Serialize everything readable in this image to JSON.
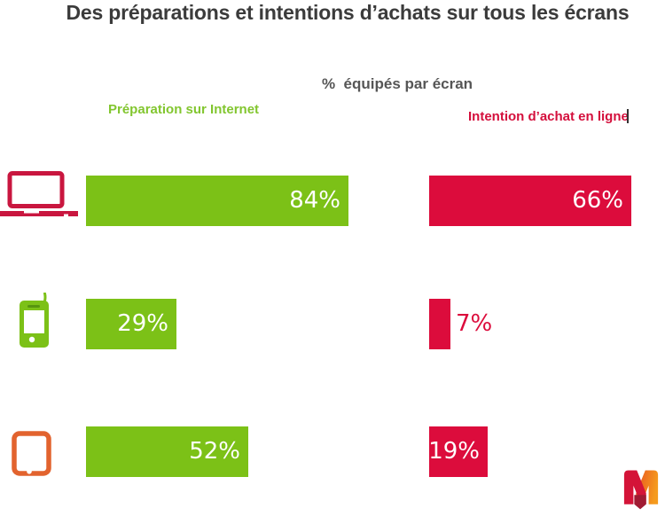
{
  "header": {
    "title": "Des préparations et intentions d’achats sur tous les écrans",
    "subtitle": "%  équipés par écran",
    "left_series_label": "Préparation sur Internet",
    "right_series_label": "Intention d’achat en ligne"
  },
  "rows": [
    {
      "device": "laptop",
      "prep_label": "84%",
      "intent_label": "66%"
    },
    {
      "device": "mobile-phone",
      "prep_label": "29%",
      "intent_label": "7%"
    },
    {
      "device": "tablet",
      "prep_label": "52%",
      "intent_label": "19%"
    }
  ],
  "colors": {
    "green_bar": "#7CC117",
    "green_text": "#82C62F",
    "red_bar": "#DC0C3C",
    "red_text": "#D40F3C",
    "laptop_icon_red": "#C9163F",
    "tablet_icon_orange": "#E2632E",
    "title_gray": "#3B3B3B",
    "subtitle_gray": "#565656",
    "cursor_dark": "#333333",
    "logo_red": "#D41438",
    "logo_orange_start": "#E85320",
    "logo_orange_end": "#F59B1E",
    "logo_dark_red": "#A01B33"
  },
  "icons": {
    "row_devices": [
      "laptop-icon",
      "mobile-phone-icon",
      "tablet-icon"
    ],
    "bottom_right": "m-logo"
  },
  "chart_data": {
    "type": "bar",
    "orientation": "horizontal",
    "title": "Des préparations et intentions d’achats sur tous les écrans",
    "subtitle": "%  équipés par écran",
    "categories": [
      "ordinateur portable",
      "téléphone mobile",
      "tablette"
    ],
    "series": [
      {
        "name": "Préparation sur Internet",
        "color": "#7CC117",
        "values": [
          84,
          29,
          52
        ]
      },
      {
        "name": "Intention d’achat en ligne",
        "color": "#DC0C3C",
        "values": [
          66,
          7,
          19
        ]
      }
    ],
    "value_labels": [
      [
        "84%",
        "29%",
        "52%"
      ],
      [
        "66%",
        "7%",
        "19%"
      ]
    ],
    "value_label_position": "inside-right, outside-right when bar too small",
    "xlim": [
      0,
      100
    ],
    "grid": false,
    "legend_position": "above columns"
  }
}
